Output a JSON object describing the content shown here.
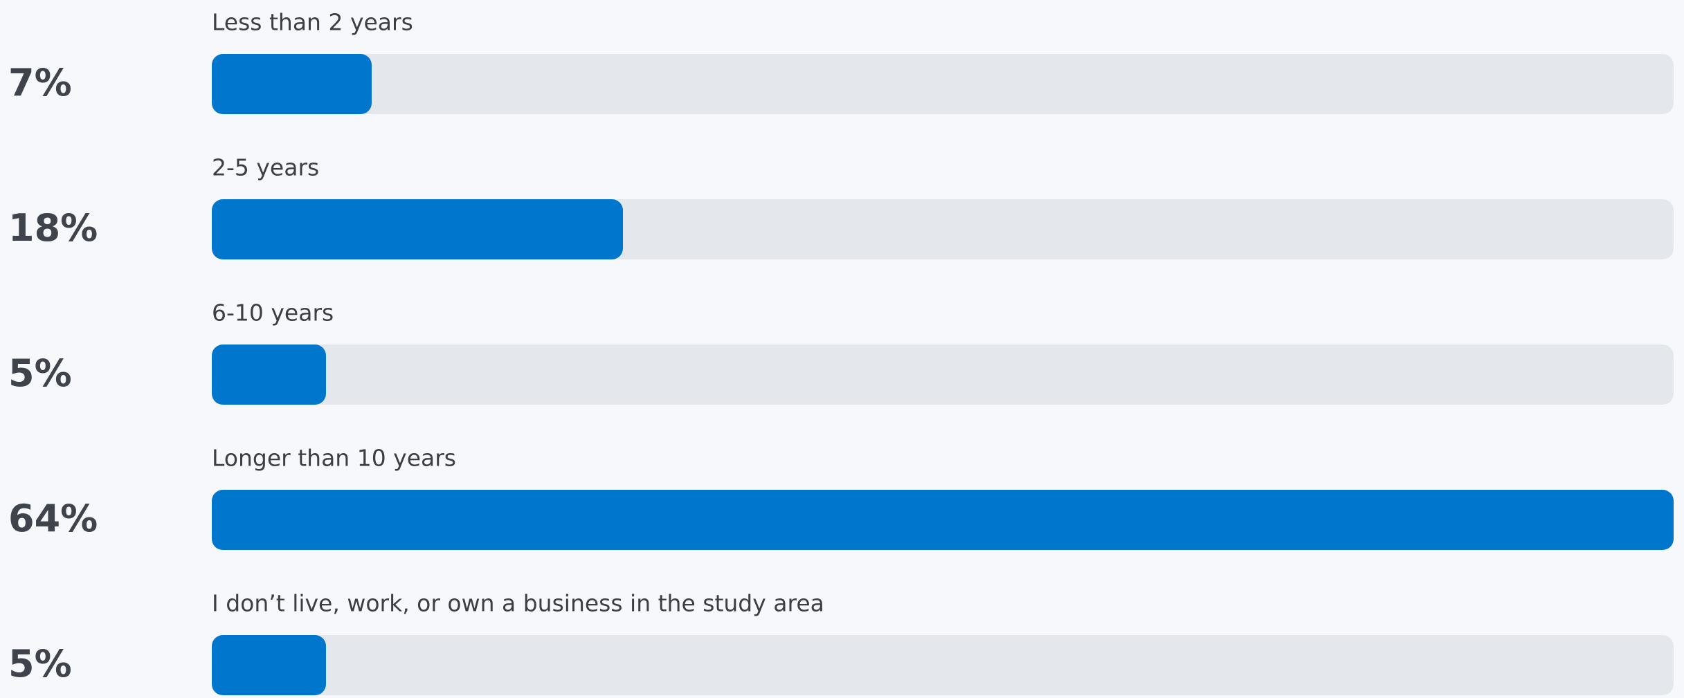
{
  "chart_data": {
    "type": "bar",
    "orientation": "horizontal",
    "categories": [
      "Less than 2 years",
      "2-5 years",
      "6-10 years",
      "Longer than 10 years",
      "I don’t live, work, or own a business in the study area"
    ],
    "values": [
      7,
      18,
      5,
      64,
      5
    ],
    "value_labels": [
      "7%",
      "18%",
      "5%",
      "64%",
      "5%"
    ],
    "color": "#0077cc"
  }
}
